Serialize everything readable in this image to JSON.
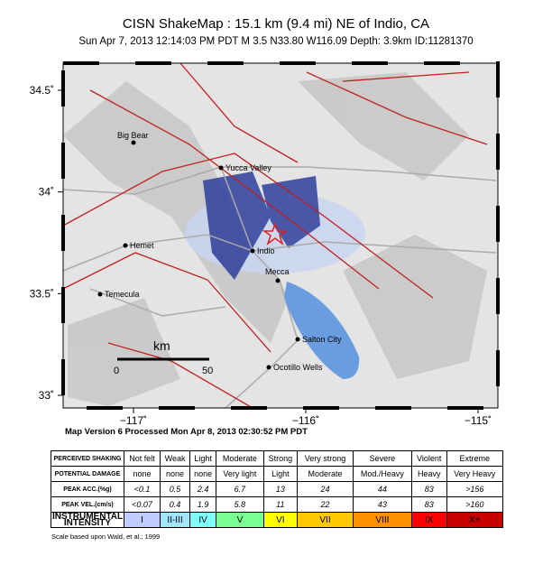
{
  "header": {
    "title": "CISN ShakeMap : 15.1 km (9.4 mi) NE of Indio, CA",
    "subtitle": "Sun Apr  7, 2013 12:14:03 PM PDT    M 3.5    N33.80 W116.09    Depth: 3.9km    ID:11281370"
  },
  "map": {
    "yticks": [
      {
        "value": 33,
        "label": "33˚"
      },
      {
        "value": 33.5,
        "label": "33.5˚"
      },
      {
        "value": 34,
        "label": "34˚"
      },
      {
        "value": 34.5,
        "label": "34.5˚"
      }
    ],
    "xticks": [
      {
        "value": -117,
        "label": "−117˚"
      },
      {
        "value": -116,
        "label": "−116˚"
      },
      {
        "value": -115,
        "label": "−115˚"
      }
    ],
    "cities": [
      "Big Bear",
      "Yucca Valley",
      "Hemet",
      "Indio",
      "Mecca",
      "Temecula",
      "Salton City",
      "Ocotillo Wells"
    ],
    "scale": {
      "unit": "km",
      "start": "0",
      "end": "50"
    }
  },
  "footer": {
    "processed": "Map Version 6 Processed Mon Apr  8, 2013 02:30:52 PM PDT",
    "note": "Scale based upon Wald, et al.; 1999"
  },
  "table": {
    "rows": [
      [
        "PERCEIVED SHAKING",
        "Not felt",
        "Weak",
        "Light",
        "Moderate",
        "Strong",
        "Very strong",
        "Severe",
        "Violent",
        "Extreme"
      ],
      [
        "POTENTIAL DAMAGE",
        "none",
        "none",
        "none",
        "Very light",
        "Light",
        "Moderate",
        "Mod./Heavy",
        "Heavy",
        "Very Heavy"
      ],
      [
        "PEAK ACC.(%g)",
        "<0.1",
        "0.5",
        "2.4",
        "6.7",
        "13",
        "24",
        "44",
        "83",
        ">156"
      ],
      [
        "PEAK VEL.(cm/s)",
        "<0.07",
        "0.4",
        "1.9",
        "5.8",
        "11",
        "22",
        "43",
        "83",
        ">160"
      ],
      [
        "INSTRUMENTAL INTENSITY",
        "I",
        "II-III",
        "IV",
        "V",
        "VI",
        "VII",
        "VIII",
        "IX",
        "X+"
      ]
    ]
  }
}
